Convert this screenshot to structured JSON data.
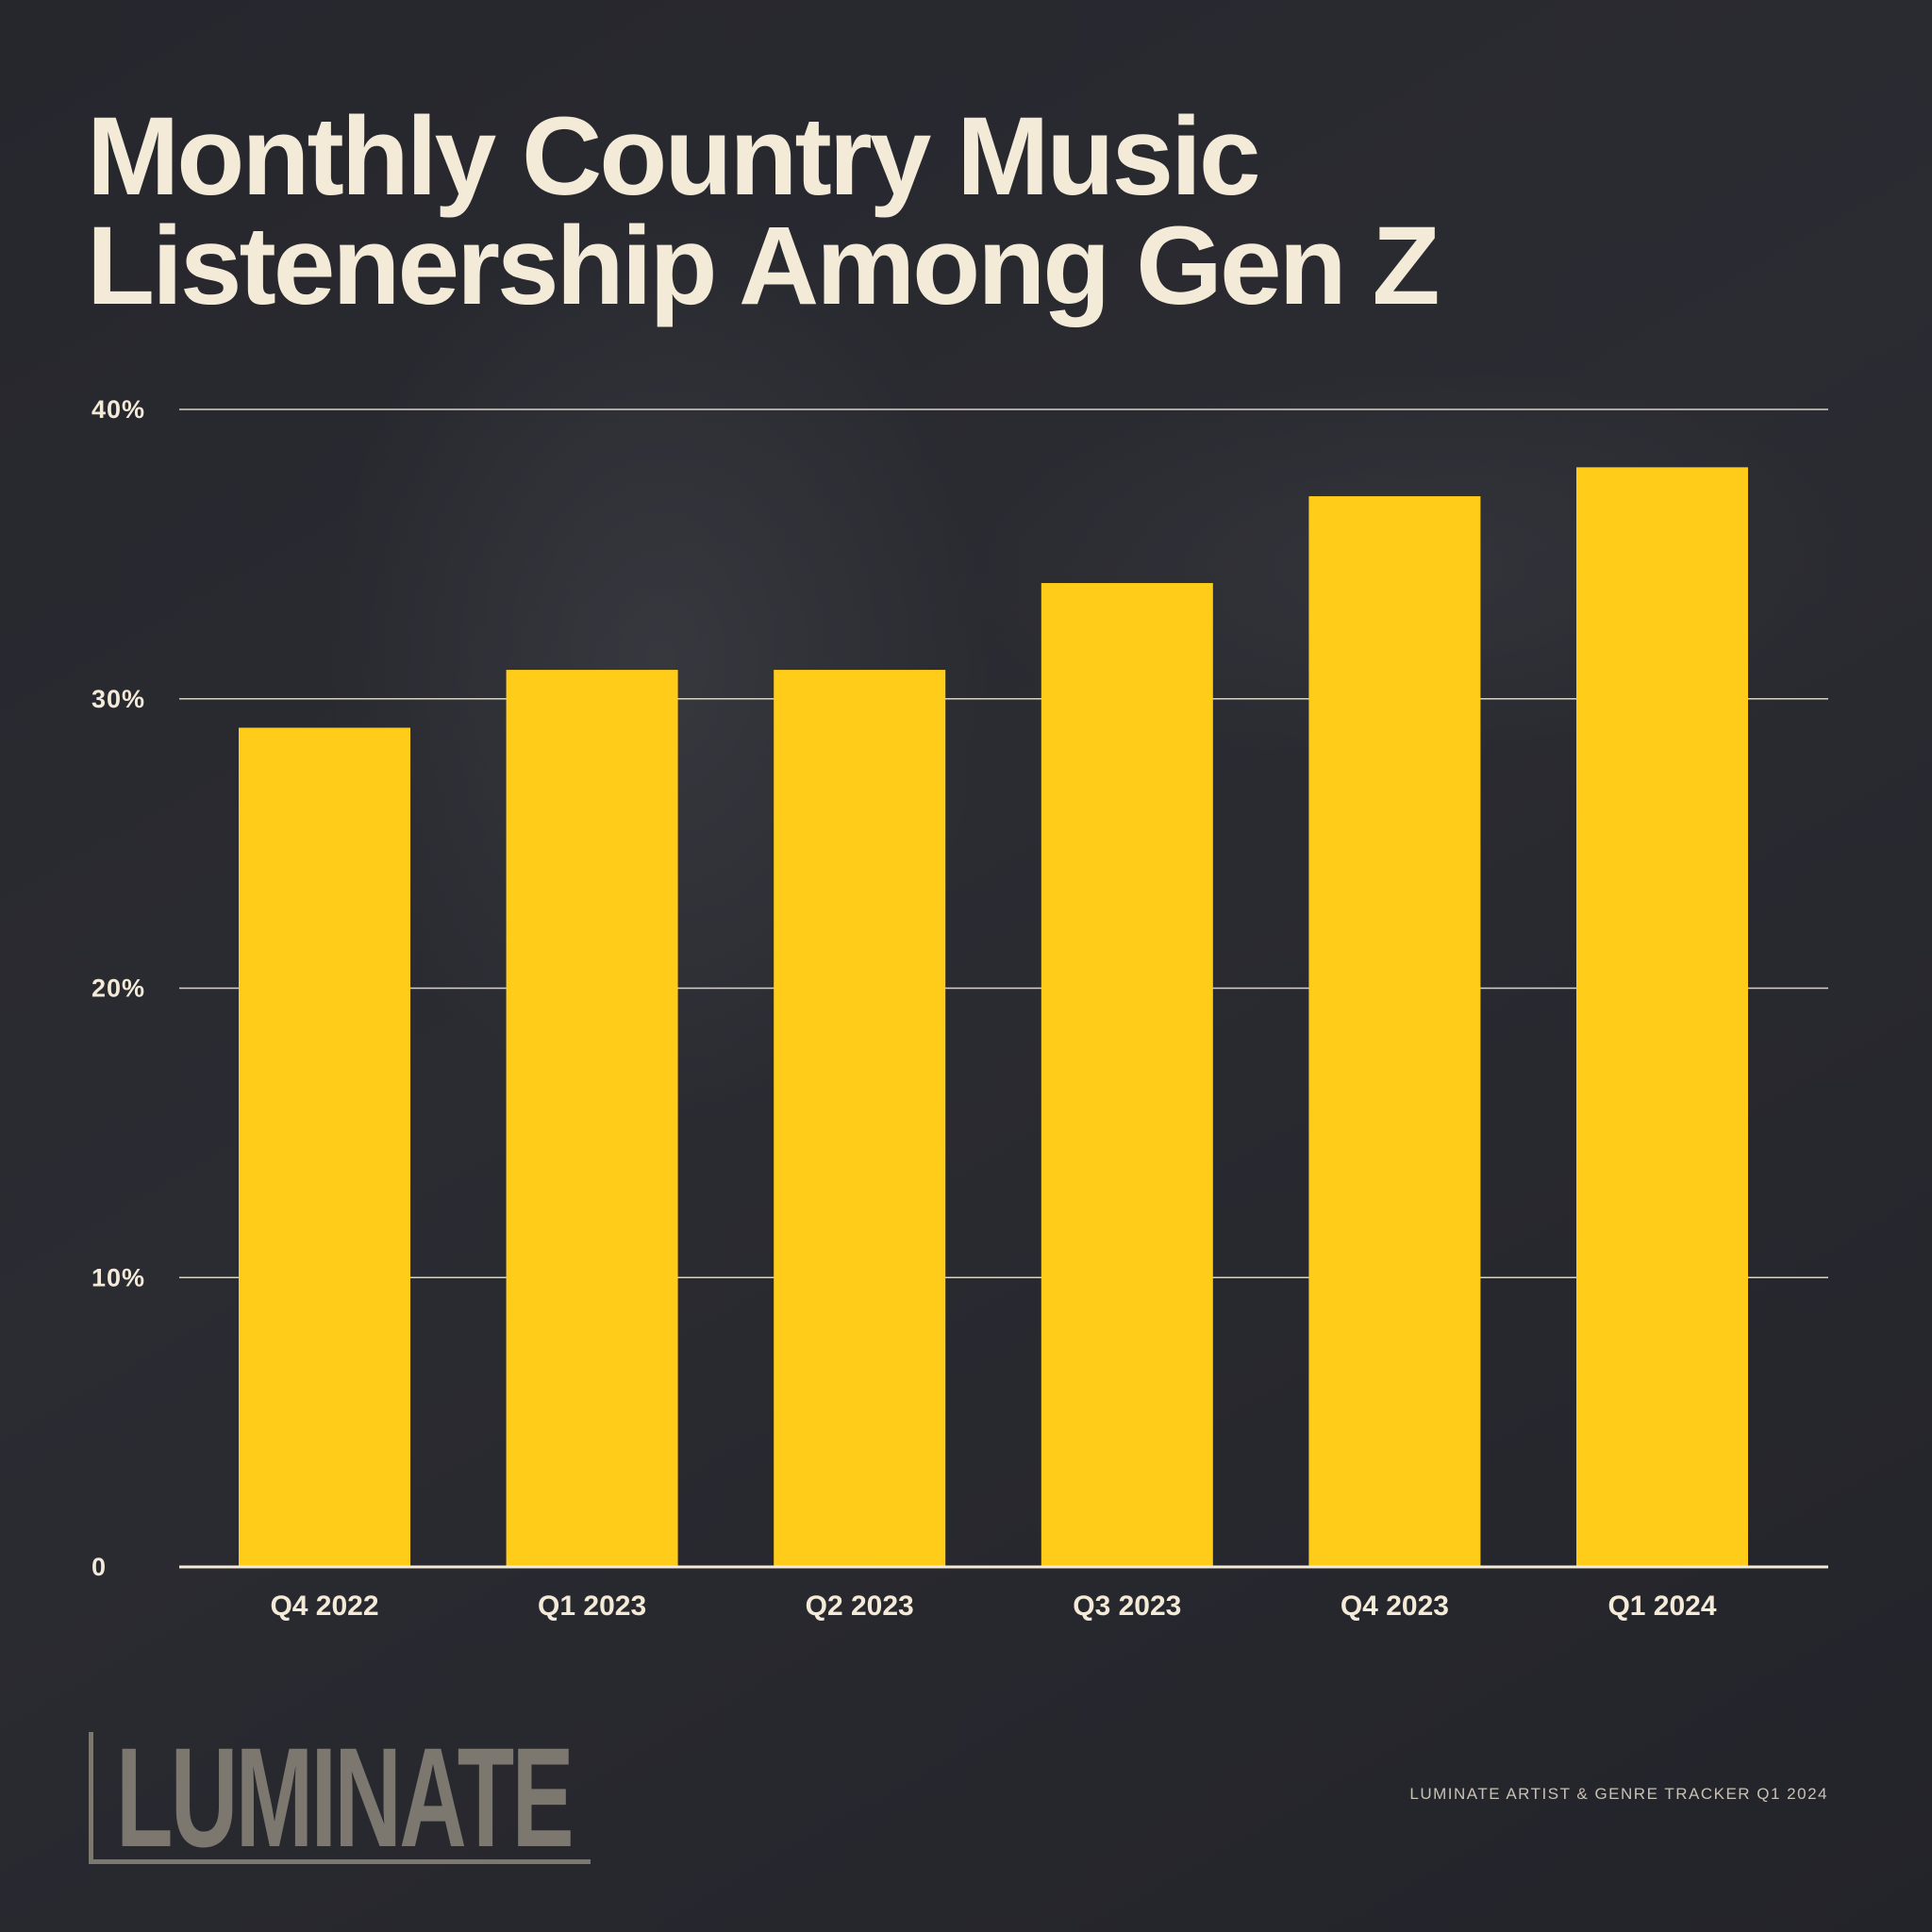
{
  "chart_data": {
    "type": "bar",
    "title": "Monthly Country Music Listenership Among Gen Z",
    "title_lines": [
      "Monthly Country Music",
      "Listenership Among Gen Z"
    ],
    "categories": [
      "Q4 2022",
      "Q1 2023",
      "Q2 2023",
      "Q3 2023",
      "Q4 2023",
      "Q1 2024"
    ],
    "values": [
      29,
      31,
      31,
      34,
      37,
      38
    ],
    "unit": "%",
    "ylim": [
      0,
      40
    ],
    "yticks": [
      0,
      10,
      20,
      30,
      40
    ],
    "ytick_labels": [
      "0",
      "10%",
      "20%",
      "30%",
      "40%"
    ],
    "xlabel": "",
    "ylabel": "",
    "grid": true,
    "legend": "none",
    "colors": {
      "bar": "#ffcc1a",
      "text": "#f3ead8",
      "grid": "#d8d2c4",
      "background": "#24242b"
    }
  },
  "footer": {
    "source": "LUMINATE ARTIST & GENRE TRACKER Q1 2024"
  },
  "logo": {
    "text": "LUMINATE"
  }
}
